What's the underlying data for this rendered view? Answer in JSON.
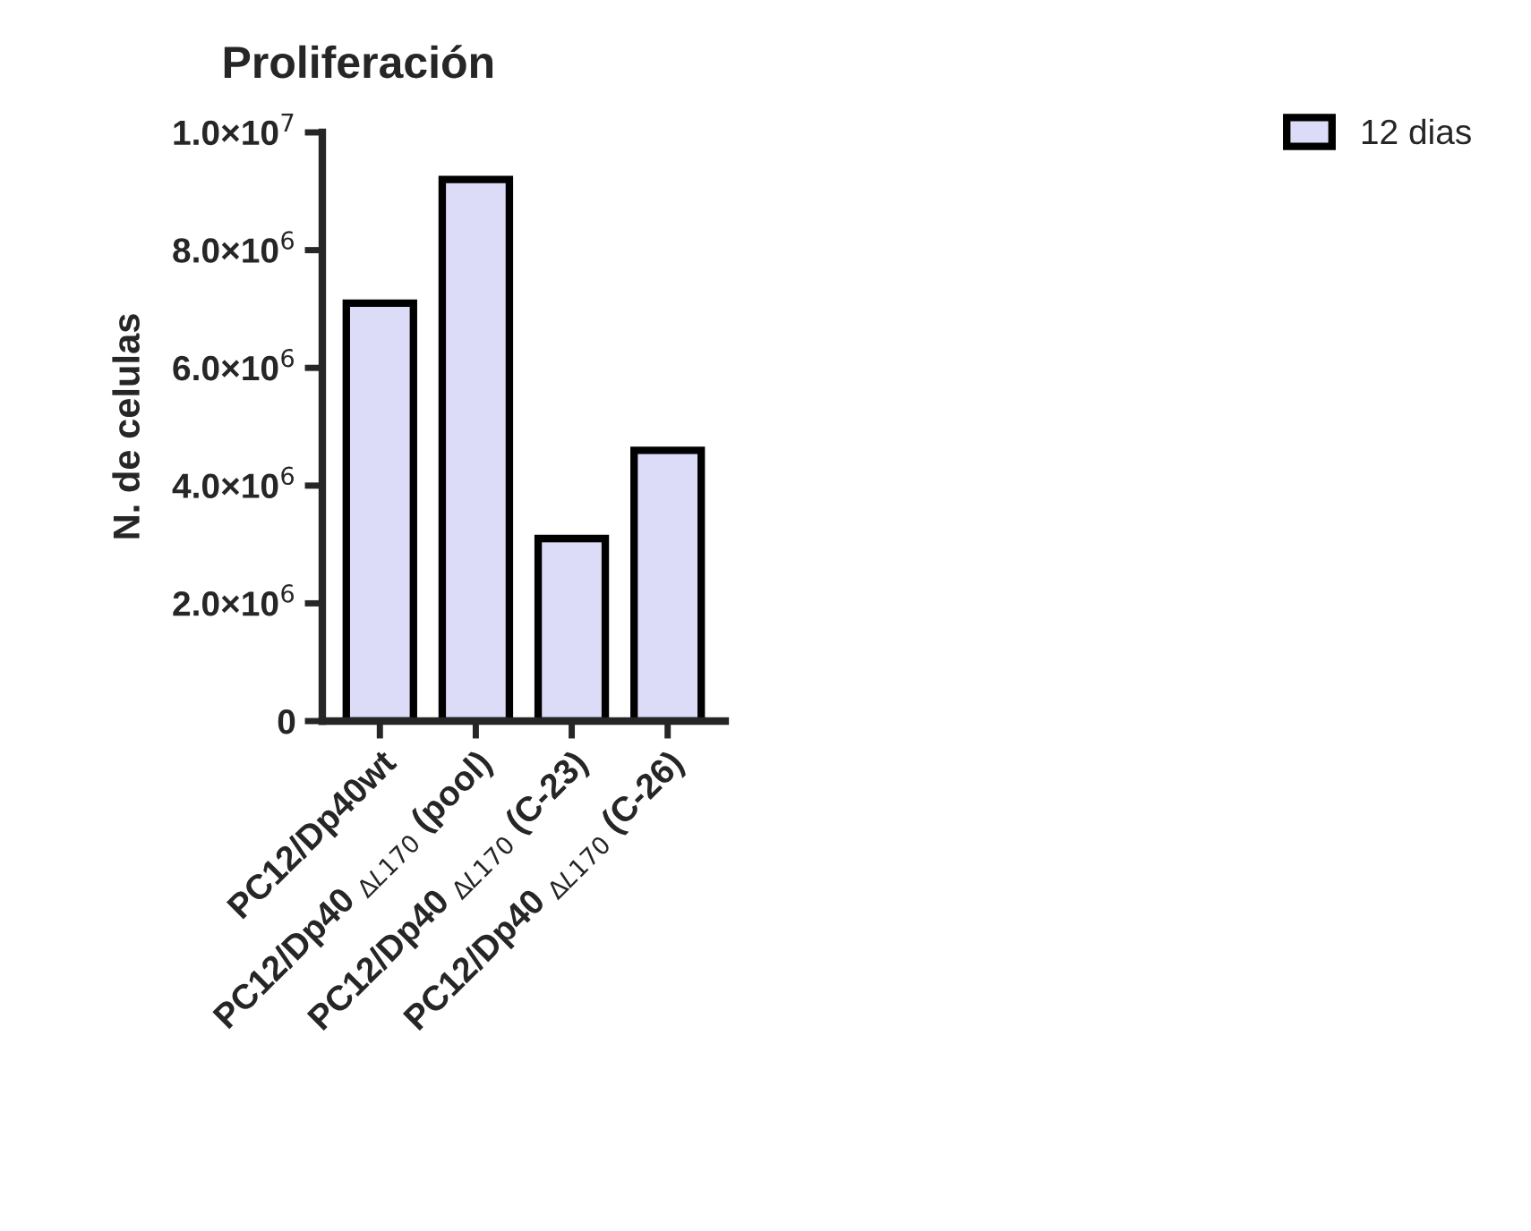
{
  "chart_data": {
    "type": "bar",
    "title": "Proliferación",
    "ylabel": "N. de celulas",
    "categories": [
      "PC12/Dp40wt",
      "PC12/Dp40 $_{ΔL170}$ (pool)",
      "PC12/Dp40 $_{ΔL170}$ (C-23)",
      "PC12/Dp40 $_{ΔL170}$ (C-26)"
    ],
    "series": [
      {
        "name": "12 dias",
        "color": "#dcdcf8",
        "values": [
          7100000,
          9200000,
          3100000,
          4600000
        ]
      }
    ],
    "ylim": [
      0,
      10000000
    ],
    "yticks": [
      0,
      {
        "value": 2000000,
        "label": "2.0×10$^{6}$"
      },
      {
        "value": 4000000,
        "label": "4.0×10$^{6}$"
      },
      {
        "value": 6000000,
        "label": "6.0×10$^{6}$"
      },
      {
        "value": 8000000,
        "label": "8.0×10$^{6}$"
      },
      {
        "value": 10000000,
        "label": "1.0×10$^{7}$"
      }
    ],
    "legend": "top right",
    "grid": false
  }
}
